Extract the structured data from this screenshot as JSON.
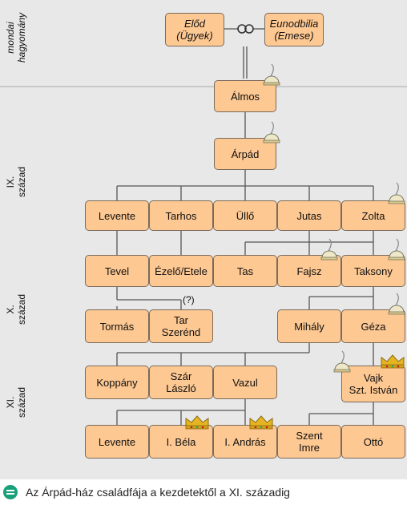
{
  "diagram": {
    "eras": [
      {
        "id": "legend",
        "label": "mondai\nhagyomány"
      },
      {
        "id": "c9",
        "label": "IX.\nszázad"
      },
      {
        "id": "c10",
        "label": "X.\nszázad"
      },
      {
        "id": "c11",
        "label": "XI.\nszázad"
      }
    ],
    "persons": {
      "elod": "Előd\n(Ügyek)",
      "eunodbilia": "Eunodbilia\n(Emese)",
      "almos": "Álmos",
      "arpad": "Árpád",
      "levente1": "Levente",
      "tarhos": "Tarhos",
      "ullo": "Üllő",
      "jutas": "Jutas",
      "zolta": "Zolta",
      "tevel": "Tevel",
      "ezelo": "Ézelő/Etele",
      "tas": "Tas",
      "fajsz": "Fajsz",
      "taksony": "Taksony",
      "tormas": "Tormás",
      "tar_szerend": "Tar\nSzerénd",
      "mihaly": "Mihály",
      "geza": "Géza",
      "koppany": "Koppány",
      "szar_laszlo": "Szár\nLászló",
      "vazul": "Vazul",
      "vajk": "Vajk\nSzt. István",
      "levente2": "Levente",
      "bela": "I. Béla",
      "andras": "I. András",
      "szent_imre": "Szent\nImre",
      "otto": "Ottó"
    },
    "uncertain_note": "(?)",
    "marriage_icon": "marriage-rings-icon",
    "ruler_icons": {
      "grand_prince": "feathered-cap-icon",
      "king": "crown-icon"
    },
    "colors": {
      "box": "#fdc892",
      "background": "#e8e8e8",
      "line": "#555555",
      "accent": "#19a07a"
    }
  },
  "caption": {
    "icon": "list-icon",
    "text": "Az Árpád-ház családfája a kezdetektől a XI. századig"
  }
}
